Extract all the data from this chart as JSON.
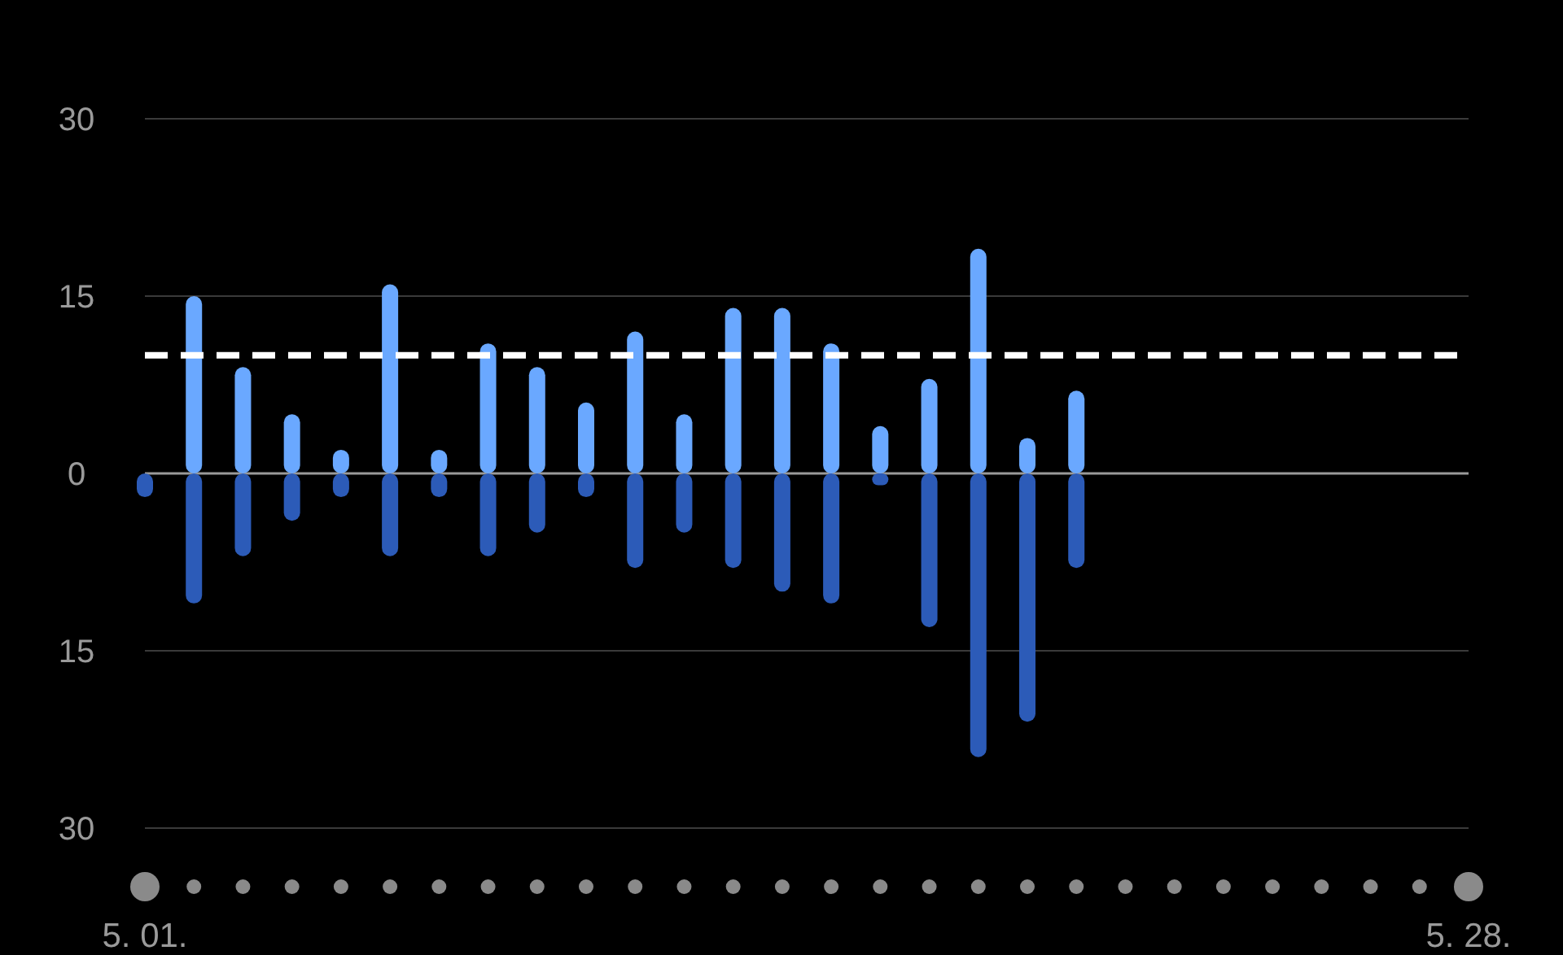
{
  "chart_data": {
    "type": "bar",
    "stacked": true,
    "categories": [
      "5. 01.",
      null,
      null,
      null,
      null,
      null,
      null,
      null,
      null,
      null,
      null,
      null,
      null,
      null,
      null,
      null,
      null,
      null,
      null,
      null,
      null,
      null,
      null,
      null,
      null,
      null,
      null,
      "5. 28."
    ],
    "series": [
      {
        "color": "#6aa8ff",
        "values": [
          0,
          15,
          9,
          5,
          2,
          16,
          2,
          11,
          9,
          6,
          12,
          5,
          14,
          14,
          11,
          4,
          8,
          19,
          3,
          7,
          null,
          null,
          null,
          null,
          null,
          null,
          null,
          null
        ]
      },
      {
        "color": "#2c5bb8",
        "values": [
          -2,
          -11,
          -7,
          -4,
          -2,
          -7,
          -2,
          -7,
          -5,
          -2,
          -8,
          -5,
          -8,
          -10,
          -11,
          -1,
          -13,
          -24,
          -21,
          -8,
          null,
          null,
          null,
          null,
          null,
          null,
          null,
          null
        ]
      }
    ],
    "ylim": [
      -30,
      30
    ],
    "yticks": [
      {
        "value": -30,
        "label": "30"
      },
      {
        "value": -15,
        "label": "15"
      },
      0,
      15,
      30
    ],
    "grid": "y",
    "ref_lines": [
      {
        "axis": "y",
        "value": 10,
        "color": "#ffffff",
        "line_style": "dashed"
      }
    ]
  }
}
